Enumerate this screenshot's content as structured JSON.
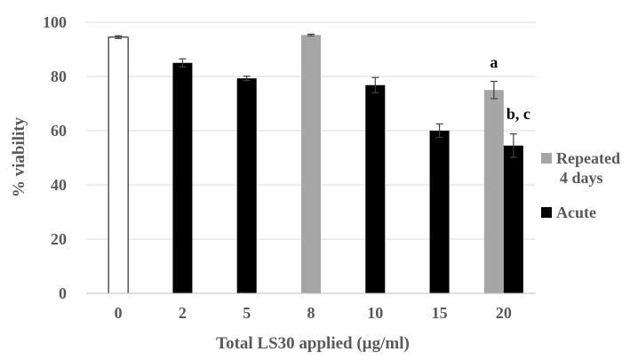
{
  "chart_data": {
    "type": "bar",
    "xlabel": "Total LS30 applied (µg/ml)",
    "ylabel": "% viability",
    "ylim": [
      0,
      100
    ],
    "yticks": [
      0,
      20,
      40,
      60,
      80,
      100
    ],
    "grid": true,
    "legend_placement": "right",
    "categories": [
      "0",
      "2",
      "5",
      "8",
      "10",
      "15",
      "20"
    ],
    "series": [
      {
        "key": "control",
        "color": "#ffffff",
        "stroke": "#000000",
        "in_legend": false,
        "values": [
          94.5,
          null,
          null,
          null,
          null,
          null,
          null
        ],
        "errors": [
          0.5,
          null,
          null,
          null,
          null,
          null,
          null
        ]
      },
      {
        "key": "repeated",
        "name": "Repeated 4 days",
        "color": "#a6a6a6",
        "in_legend": true,
        "values": [
          null,
          null,
          null,
          95.3,
          null,
          null,
          75.0
        ],
        "errors": [
          null,
          null,
          null,
          0.3,
          null,
          null,
          3.2
        ]
      },
      {
        "key": "acute",
        "name": "Acute",
        "color": "#000000",
        "in_legend": true,
        "values": [
          null,
          85.0,
          79.3,
          null,
          76.8,
          60.0,
          54.5
        ],
        "errors": [
          null,
          1.5,
          0.8,
          null,
          2.8,
          2.5,
          4.3
        ]
      }
    ],
    "annotations": [
      {
        "text": "a",
        "category": "20",
        "series": "repeated"
      },
      {
        "text": "b, c",
        "category": "20",
        "series": "acute"
      }
    ]
  }
}
